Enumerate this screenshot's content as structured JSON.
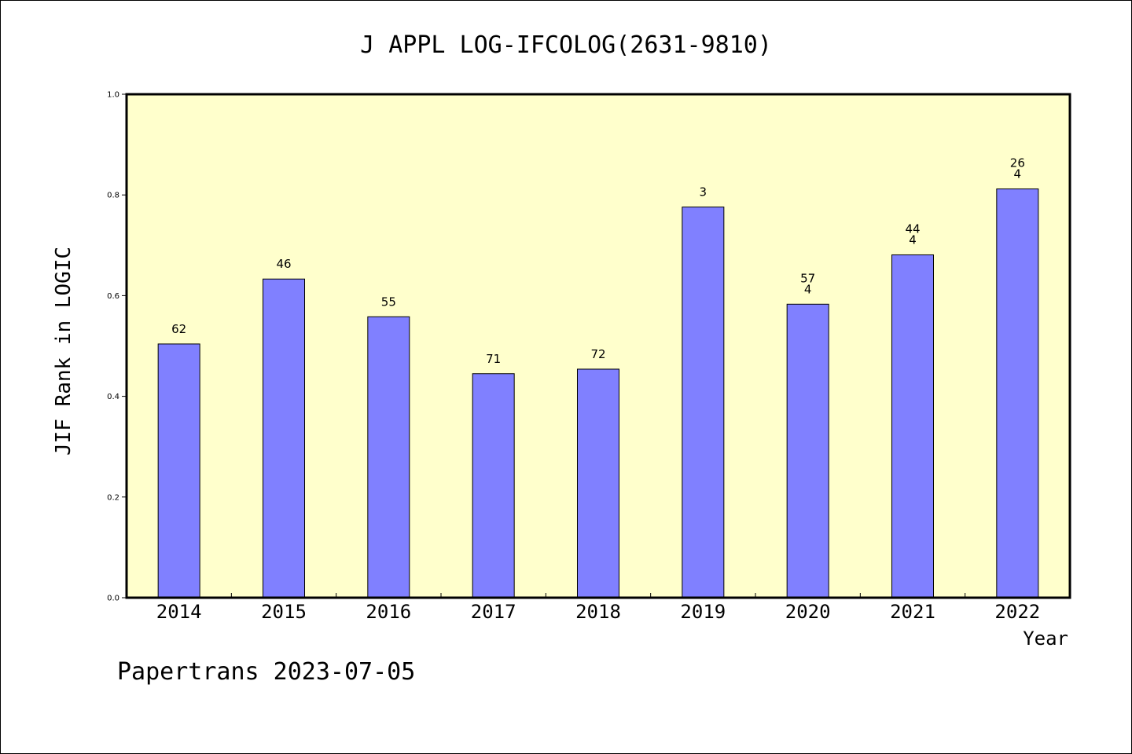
{
  "chart_data": {
    "type": "bar",
    "title": "J APPL LOG-IFCOLOG(2631-9810)",
    "xlabel": "Year",
    "ylabel": "JIF Rank in LOGIC",
    "categories": [
      "2014",
      "2015",
      "2016",
      "2017",
      "2018",
      "2019",
      "2020",
      "2021",
      "2022"
    ],
    "values": [
      0.504,
      0.633,
      0.558,
      0.445,
      0.454,
      0.776,
      0.583,
      0.681,
      0.812
    ],
    "data_labels": [
      [
        "62"
      ],
      [
        "46"
      ],
      [
        "55"
      ],
      [
        "71"
      ],
      [
        "72"
      ],
      [
        "3"
      ],
      [
        "57",
        "4"
      ],
      [
        "44",
        "4"
      ],
      [
        "26",
        "4"
      ]
    ],
    "ylim": [
      0,
      1.0
    ],
    "yticks": [
      "0.0",
      "0.2",
      "0.4",
      "0.6",
      "0.8",
      "1.0"
    ],
    "grid": false,
    "colors": {
      "bar": "#8080ff",
      "plot_background": "#ffffcc",
      "axis": "#000000"
    }
  },
  "footer": "Papertrans 2023-07-05"
}
